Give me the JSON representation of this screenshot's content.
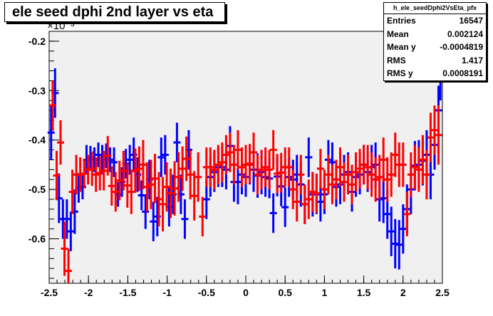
{
  "chart_data": {
    "type": "scatter",
    "title": "ele seed dphi 2nd layer vs eta",
    "y_exponent": "×10⁻³",
    "xlim": [
      -2.5,
      2.5
    ],
    "ylim": [
      -0.69,
      -0.18
    ],
    "x_ticks": [
      "-2.5",
      "-2",
      "-1.5",
      "-1",
      "-0.5",
      "0",
      "0.5",
      "1",
      "1.5",
      "2",
      "2.5"
    ],
    "y_ticks": [
      "-0.2",
      "-0.3",
      "-0.4",
      "-0.5",
      "-0.6"
    ],
    "colors": {
      "blue": "#0000ff",
      "red": "#ff0000",
      "frame_bg": "#f0f0f0"
    },
    "series": [
      {
        "color": "blue",
        "points": [
          [
            -2.475,
            -0.385,
            0.055
          ],
          [
            -2.425,
            -0.305,
            0.05
          ],
          [
            -2.375,
            -0.518,
            0.05
          ],
          [
            -2.325,
            -0.56,
            0.04
          ],
          [
            -2.275,
            -0.56,
            0.04
          ],
          [
            -2.225,
            -0.585,
            0.04
          ],
          [
            -2.175,
            -0.545,
            0.045
          ],
          [
            -2.125,
            -0.497,
            0.03
          ],
          [
            -2.075,
            -0.495,
            0.025
          ],
          [
            -2.025,
            -0.44,
            0.03
          ],
          [
            -1.975,
            -0.437,
            0.025
          ],
          [
            -1.925,
            -0.44,
            0.025
          ],
          [
            -1.875,
            -0.43,
            0.025
          ],
          [
            -1.825,
            -0.44,
            0.03
          ],
          [
            -1.775,
            -0.432,
            0.025
          ],
          [
            -1.725,
            -0.44,
            0.025
          ],
          [
            -1.675,
            -0.445,
            0.03
          ],
          [
            -1.625,
            -0.51,
            0.025
          ],
          [
            -1.575,
            -0.485,
            0.03
          ],
          [
            -1.525,
            -0.448,
            0.03
          ],
          [
            -1.475,
            -0.44,
            0.03
          ],
          [
            -1.425,
            -0.43,
            0.035
          ],
          [
            -1.375,
            -0.47,
            0.035
          ],
          [
            -1.325,
            -0.512,
            0.03
          ],
          [
            -1.275,
            -0.545,
            0.035
          ],
          [
            -1.225,
            -0.48,
            0.04
          ],
          [
            -1.175,
            -0.565,
            0.04
          ],
          [
            -1.125,
            -0.555,
            0.04
          ],
          [
            -1.075,
            -0.435,
            0.04
          ],
          [
            -1.025,
            -0.43,
            0.04
          ],
          [
            -0.975,
            -0.535,
            0.04
          ],
          [
            -0.925,
            -0.51,
            0.04
          ],
          [
            -0.875,
            -0.405,
            0.04
          ],
          [
            -0.825,
            -0.51,
            0.04
          ],
          [
            -0.775,
            -0.56,
            0.04
          ],
          [
            -0.725,
            -0.42,
            0.04
          ]
        ]
      },
      {
        "color": "red",
        "points": [
          [
            -2.455,
            -0.33,
            0.05
          ],
          [
            -2.405,
            -0.472,
            0.05
          ],
          [
            -2.355,
            -0.405,
            0.045
          ],
          [
            -2.305,
            -0.62,
            0.055
          ],
          [
            -2.255,
            -0.665,
            0.045
          ],
          [
            -2.205,
            -0.505,
            0.045
          ],
          [
            -2.155,
            -0.47,
            0.04
          ],
          [
            -2.105,
            -0.47,
            0.035
          ],
          [
            -2.055,
            -0.468,
            0.03
          ],
          [
            -2.005,
            -0.46,
            0.03
          ],
          [
            -1.955,
            -0.458,
            0.035
          ],
          [
            -1.905,
            -0.47,
            0.035
          ],
          [
            -1.855,
            -0.467,
            0.035
          ],
          [
            -1.805,
            -0.462,
            0.04
          ],
          [
            -1.755,
            -0.432,
            0.04
          ],
          [
            -1.705,
            -0.493,
            0.04
          ],
          [
            -1.655,
            -0.505,
            0.04
          ],
          [
            -1.605,
            -0.482,
            0.04
          ],
          [
            -1.555,
            -0.462,
            0.04
          ],
          [
            -1.505,
            -0.492,
            0.045
          ],
          [
            -1.455,
            -0.505,
            0.045
          ],
          [
            -1.405,
            -0.462,
            0.045
          ],
          [
            -1.355,
            -0.458,
            0.045
          ],
          [
            -1.305,
            -0.45,
            0.05
          ],
          [
            -1.255,
            -0.495,
            0.05
          ],
          [
            -1.205,
            -0.49,
            0.05
          ],
          [
            -1.155,
            -0.478,
            0.05
          ],
          [
            -1.105,
            -0.52,
            0.055
          ],
          [
            -1.055,
            -0.53,
            0.055
          ],
          [
            -1.005,
            -0.495,
            0.05
          ],
          [
            -0.955,
            -0.508,
            0.05
          ],
          [
            -0.905,
            -0.498,
            0.055
          ],
          [
            -0.855,
            -0.475,
            0.05
          ],
          [
            -0.805,
            -0.458,
            0.045
          ],
          [
            -0.755,
            -0.438,
            0.045
          ],
          [
            -0.705,
            -0.47,
            0.05
          ],
          [
            -0.655,
            -0.513,
            0.05
          ],
          [
            -0.605,
            -0.475,
            0.05
          ]
        ]
      },
      {
        "color": "blue",
        "points": [
          [
            -0.5,
            -0.52,
            0.04
          ],
          [
            -0.45,
            -0.475,
            0.04
          ],
          [
            -0.4,
            -0.465,
            0.04
          ],
          [
            -0.35,
            -0.455,
            0.04
          ],
          [
            -0.3,
            -0.455,
            0.04
          ],
          [
            -0.25,
            -0.46,
            0.04
          ],
          [
            -0.2,
            -0.412,
            0.04
          ],
          [
            -0.15,
            -0.485,
            0.04
          ],
          [
            -0.1,
            -0.485,
            0.045
          ],
          [
            -0.05,
            -0.47,
            0.04
          ],
          [
            0.0,
            -0.475,
            0.04
          ],
          [
            0.05,
            -0.45,
            0.04
          ],
          [
            0.1,
            -0.46,
            0.045
          ],
          [
            0.15,
            -0.472,
            0.045
          ],
          [
            0.2,
            -0.465,
            0.045
          ],
          [
            0.25,
            -0.475,
            0.04
          ],
          [
            0.3,
            -0.478,
            0.04
          ],
          [
            0.35,
            -0.548,
            0.04
          ],
          [
            0.4,
            -0.474,
            0.04
          ],
          [
            0.45,
            -0.494,
            0.04
          ],
          [
            0.5,
            -0.536,
            0.04
          ],
          [
            0.55,
            -0.475,
            0.04
          ],
          [
            0.6,
            -0.48,
            0.04
          ],
          [
            0.65,
            -0.47,
            0.04
          ],
          [
            0.7,
            -0.49,
            0.045
          ],
          [
            0.75,
            -0.53,
            0.04
          ],
          [
            0.8,
            -0.435,
            0.04
          ],
          [
            0.85,
            -0.51,
            0.045
          ],
          [
            0.9,
            -0.51,
            0.04
          ],
          [
            0.95,
            -0.525,
            0.04
          ],
          [
            1.0,
            -0.51,
            0.04
          ]
        ]
      },
      {
        "color": "red",
        "points": [
          [
            -0.55,
            -0.555,
            0.04
          ],
          [
            -0.5,
            -0.455,
            0.04
          ],
          [
            -0.45,
            -0.455,
            0.04
          ],
          [
            -0.4,
            -0.46,
            0.04
          ],
          [
            -0.35,
            -0.45,
            0.04
          ],
          [
            -0.3,
            -0.445,
            0.04
          ],
          [
            -0.25,
            -0.43,
            0.04
          ],
          [
            -0.2,
            -0.425,
            0.04
          ],
          [
            -0.15,
            -0.45,
            0.04
          ],
          [
            -0.1,
            -0.42,
            0.04
          ],
          [
            -0.05,
            -0.455,
            0.04
          ],
          [
            0.0,
            -0.45,
            0.04
          ],
          [
            0.05,
            -0.448,
            0.04
          ],
          [
            0.1,
            -0.425,
            0.04
          ],
          [
            0.15,
            -0.47,
            0.04
          ],
          [
            0.2,
            -0.46,
            0.04
          ],
          [
            0.25,
            -0.455,
            0.04
          ],
          [
            0.3,
            -0.46,
            0.04
          ],
          [
            0.35,
            -0.42,
            0.04
          ],
          [
            0.4,
            -0.468,
            0.04
          ],
          [
            0.45,
            -0.466,
            0.04
          ],
          [
            0.5,
            -0.455,
            0.04
          ],
          [
            0.55,
            -0.455,
            0.04
          ],
          [
            0.6,
            -0.5,
            0.04
          ],
          [
            0.65,
            -0.525,
            0.04
          ],
          [
            0.7,
            -0.47,
            0.04
          ],
          [
            0.75,
            -0.53,
            0.04
          ],
          [
            0.8,
            -0.52,
            0.04
          ],
          [
            0.85,
            -0.505,
            0.04
          ],
          [
            0.9,
            -0.508,
            0.04
          ],
          [
            0.95,
            -0.458,
            0.04
          ],
          [
            1.0,
            -0.5,
            0.04
          ]
        ]
      },
      {
        "color": "blue",
        "points": [
          [
            1.05,
            -0.44,
            0.04
          ],
          [
            1.1,
            -0.445,
            0.04
          ],
          [
            1.15,
            -0.495,
            0.04
          ],
          [
            1.2,
            -0.49,
            0.04
          ],
          [
            1.25,
            -0.47,
            0.04
          ],
          [
            1.3,
            -0.465,
            0.04
          ],
          [
            1.35,
            -0.505,
            0.04
          ],
          [
            1.4,
            -0.475,
            0.04
          ],
          [
            1.45,
            -0.47,
            0.04
          ],
          [
            1.5,
            -0.45,
            0.04
          ],
          [
            1.55,
            -0.465,
            0.04
          ],
          [
            1.6,
            -0.455,
            0.045
          ],
          [
            1.65,
            -0.45,
            0.045
          ],
          [
            1.7,
            -0.52,
            0.045
          ],
          [
            1.75,
            -0.518,
            0.05
          ],
          [
            1.8,
            -0.55,
            0.05
          ],
          [
            1.85,
            -0.585,
            0.05
          ],
          [
            1.9,
            -0.61,
            0.05
          ],
          [
            1.95,
            -0.612,
            0.05
          ],
          [
            2.0,
            -0.58,
            0.05
          ],
          [
            2.05,
            -0.54,
            0.05
          ],
          [
            2.1,
            -0.5,
            0.05
          ],
          [
            2.15,
            -0.452,
            0.05
          ],
          [
            2.2,
            -0.45,
            0.05
          ],
          [
            2.25,
            -0.442,
            0.05
          ],
          [
            2.3,
            -0.43,
            0.05
          ],
          [
            2.35,
            -0.47,
            0.05
          ],
          [
            2.4,
            -0.41,
            0.05
          ],
          [
            2.45,
            -0.34,
            0.05
          ],
          [
            2.475,
            -0.27,
            0.05
          ]
        ]
      },
      {
        "color": "red",
        "points": [
          [
            1.05,
            -0.47,
            0.04
          ],
          [
            1.1,
            -0.49,
            0.04
          ],
          [
            1.15,
            -0.48,
            0.04
          ],
          [
            1.2,
            -0.455,
            0.04
          ],
          [
            1.25,
            -0.485,
            0.04
          ],
          [
            1.3,
            -0.47,
            0.04
          ],
          [
            1.35,
            -0.49,
            0.04
          ],
          [
            1.4,
            -0.465,
            0.04
          ],
          [
            1.45,
            -0.458,
            0.04
          ],
          [
            1.5,
            -0.45,
            0.04
          ],
          [
            1.55,
            -0.455,
            0.045
          ],
          [
            1.6,
            -0.47,
            0.045
          ],
          [
            1.65,
            -0.48,
            0.045
          ],
          [
            1.7,
            -0.475,
            0.045
          ],
          [
            1.75,
            -0.44,
            0.045
          ],
          [
            1.8,
            -0.48,
            0.045
          ],
          [
            1.85,
            -0.47,
            0.045
          ],
          [
            1.9,
            -0.43,
            0.045
          ],
          [
            1.95,
            -0.45,
            0.045
          ],
          [
            2.0,
            -0.45,
            0.045
          ],
          [
            2.05,
            -0.55,
            0.045
          ],
          [
            2.1,
            -0.47,
            0.045
          ],
          [
            2.15,
            -0.455,
            0.045
          ],
          [
            2.2,
            -0.46,
            0.045
          ],
          [
            2.25,
            -0.44,
            0.05
          ],
          [
            2.3,
            -0.47,
            0.05
          ],
          [
            2.35,
            -0.395,
            0.05
          ],
          [
            2.4,
            -0.38,
            0.05
          ],
          [
            2.45,
            -0.39,
            0.06
          ]
        ]
      }
    ]
  },
  "stats": {
    "name": "h_ele_seedDphi2VsEta_pfx",
    "rows": [
      {
        "label": "Entries",
        "value": "16547"
      },
      {
        "label": "Mean",
        "value": "0.002124"
      },
      {
        "label": "Mean y",
        "value": "-0.0004819"
      },
      {
        "label": "RMS",
        "value": "1.417"
      },
      {
        "label": "RMS y",
        "value": "0.0008191"
      }
    ]
  }
}
